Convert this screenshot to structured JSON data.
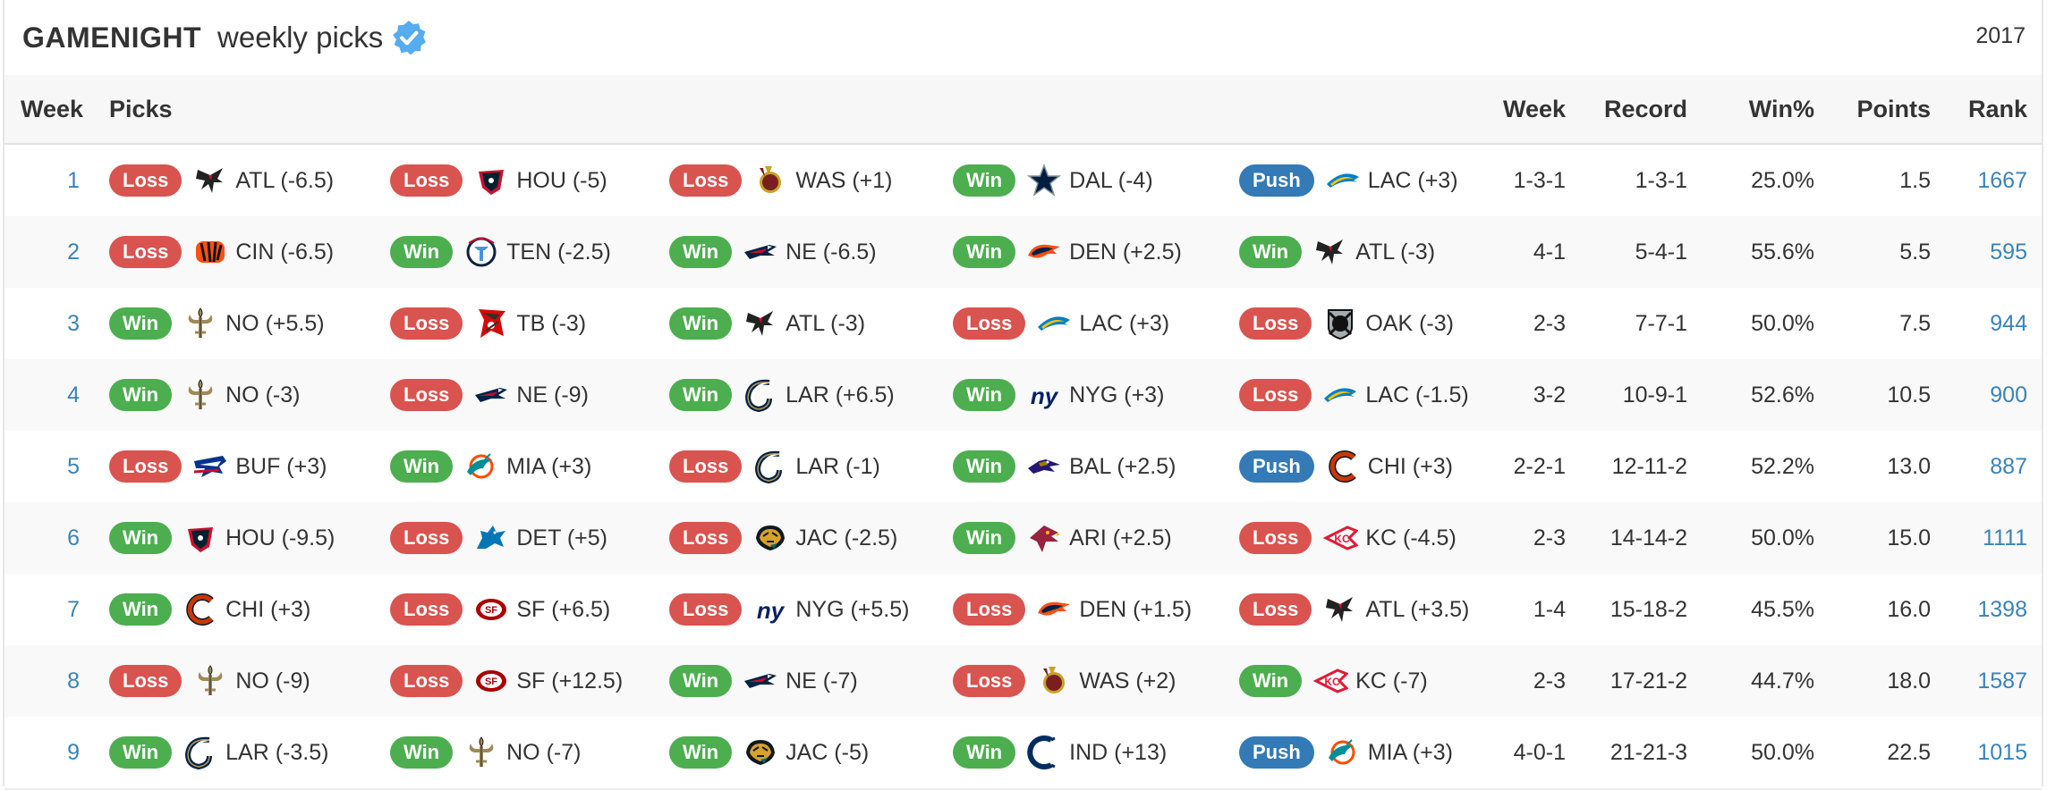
{
  "header": {
    "brand": "GAMENIGHT",
    "subtitle": "weekly picks",
    "year": "2017"
  },
  "columns": {
    "week": "Week",
    "picks": "Picks",
    "week_record": "Week",
    "record": "Record",
    "win_pct": "Win%",
    "points": "Points",
    "rank": "Rank"
  },
  "colors": {
    "win": "#4cae4f",
    "loss": "#d9534f",
    "push": "#337ab7",
    "link": "#3a83b8"
  },
  "rows": [
    {
      "week": "1",
      "picks": [
        {
          "result": "Loss",
          "team": "ATL",
          "icon": "falcons-logo-icon",
          "text": "ATL (-6.5)"
        },
        {
          "result": "Loss",
          "team": "HOU",
          "icon": "texans-logo-icon",
          "text": "HOU (-5)"
        },
        {
          "result": "Loss",
          "team": "WAS",
          "icon": "redskins-logo-icon",
          "text": "WAS (+1)"
        },
        {
          "result": "Win",
          "team": "DAL",
          "icon": "cowboys-logo-icon",
          "text": "DAL (-4)"
        },
        {
          "result": "Push",
          "team": "LAC",
          "icon": "chargers-logo-icon",
          "text": "LAC (+3)"
        }
      ],
      "week_record": "1-3-1",
      "record": "1-3-1",
      "win_pct": "25.0%",
      "points": "1.5",
      "rank": "1667"
    },
    {
      "week": "2",
      "picks": [
        {
          "result": "Loss",
          "team": "CIN",
          "icon": "bengals-logo-icon",
          "text": "CIN (-6.5)"
        },
        {
          "result": "Win",
          "team": "TEN",
          "icon": "titans-logo-icon",
          "text": "TEN (-2.5)"
        },
        {
          "result": "Win",
          "team": "NE",
          "icon": "patriots-logo-icon",
          "text": "NE (-6.5)"
        },
        {
          "result": "Win",
          "team": "DEN",
          "icon": "broncos-logo-icon",
          "text": "DEN (+2.5)"
        },
        {
          "result": "Win",
          "team": "ATL",
          "icon": "falcons-logo-icon",
          "text": "ATL (-3)"
        }
      ],
      "week_record": "4-1",
      "record": "5-4-1",
      "win_pct": "55.6%",
      "points": "5.5",
      "rank": "595"
    },
    {
      "week": "3",
      "picks": [
        {
          "result": "Win",
          "team": "NO",
          "icon": "saints-logo-icon",
          "text": "NO (+5.5)"
        },
        {
          "result": "Loss",
          "team": "TB",
          "icon": "buccaneers-logo-icon",
          "text": "TB (-3)"
        },
        {
          "result": "Win",
          "team": "ATL",
          "icon": "falcons-logo-icon",
          "text": "ATL (-3)"
        },
        {
          "result": "Loss",
          "team": "LAC",
          "icon": "chargers-logo-icon",
          "text": "LAC (+3)"
        },
        {
          "result": "Loss",
          "team": "OAK",
          "icon": "raiders-logo-icon",
          "text": "OAK (-3)"
        }
      ],
      "week_record": "2-3",
      "record": "7-7-1",
      "win_pct": "50.0%",
      "points": "7.5",
      "rank": "944"
    },
    {
      "week": "4",
      "picks": [
        {
          "result": "Win",
          "team": "NO",
          "icon": "saints-logo-icon",
          "text": "NO (-3)"
        },
        {
          "result": "Loss",
          "team": "NE",
          "icon": "patriots-logo-icon",
          "text": "NE (-9)"
        },
        {
          "result": "Win",
          "team": "LAR",
          "icon": "rams-logo-icon",
          "text": "LAR (+6.5)"
        },
        {
          "result": "Win",
          "team": "NYG",
          "icon": "giants-logo-icon",
          "text": "NYG (+3)"
        },
        {
          "result": "Loss",
          "team": "LAC",
          "icon": "chargers-logo-icon",
          "text": "LAC (-1.5)"
        }
      ],
      "week_record": "3-2",
      "record": "10-9-1",
      "win_pct": "52.6%",
      "points": "10.5",
      "rank": "900"
    },
    {
      "week": "5",
      "picks": [
        {
          "result": "Loss",
          "team": "BUF",
          "icon": "bills-logo-icon",
          "text": "BUF (+3)"
        },
        {
          "result": "Win",
          "team": "MIA",
          "icon": "dolphins-logo-icon",
          "text": "MIA (+3)"
        },
        {
          "result": "Loss",
          "team": "LAR",
          "icon": "rams-logo-icon",
          "text": "LAR (-1)"
        },
        {
          "result": "Win",
          "team": "BAL",
          "icon": "ravens-logo-icon",
          "text": "BAL (+2.5)"
        },
        {
          "result": "Push",
          "team": "CHI",
          "icon": "bears-logo-icon",
          "text": "CHI (+3)"
        }
      ],
      "week_record": "2-2-1",
      "record": "12-11-2",
      "win_pct": "52.2%",
      "points": "13.0",
      "rank": "887"
    },
    {
      "week": "6",
      "picks": [
        {
          "result": "Win",
          "team": "HOU",
          "icon": "texans-logo-icon",
          "text": "HOU (-9.5)"
        },
        {
          "result": "Loss",
          "team": "DET",
          "icon": "lions-logo-icon",
          "text": "DET (+5)"
        },
        {
          "result": "Loss",
          "team": "JAC",
          "icon": "jaguars-logo-icon",
          "text": "JAC (-2.5)"
        },
        {
          "result": "Win",
          "team": "ARI",
          "icon": "cardinals-logo-icon",
          "text": "ARI (+2.5)"
        },
        {
          "result": "Loss",
          "team": "KC",
          "icon": "chiefs-logo-icon",
          "text": "KC (-4.5)"
        }
      ],
      "week_record": "2-3",
      "record": "14-14-2",
      "win_pct": "50.0%",
      "points": "15.0",
      "rank": "1111"
    },
    {
      "week": "7",
      "picks": [
        {
          "result": "Win",
          "team": "CHI",
          "icon": "bears-logo-icon",
          "text": "CHI (+3)"
        },
        {
          "result": "Loss",
          "team": "SF",
          "icon": "49ers-logo-icon",
          "text": "SF (+6.5)"
        },
        {
          "result": "Loss",
          "team": "NYG",
          "icon": "giants-logo-icon",
          "text": "NYG (+5.5)"
        },
        {
          "result": "Loss",
          "team": "DEN",
          "icon": "broncos-logo-icon",
          "text": "DEN (+1.5)"
        },
        {
          "result": "Loss",
          "team": "ATL",
          "icon": "falcons-logo-icon",
          "text": "ATL (+3.5)"
        }
      ],
      "week_record": "1-4",
      "record": "15-18-2",
      "win_pct": "45.5%",
      "points": "16.0",
      "rank": "1398"
    },
    {
      "week": "8",
      "picks": [
        {
          "result": "Loss",
          "team": "NO",
          "icon": "saints-logo-icon",
          "text": "NO (-9)"
        },
        {
          "result": "Loss",
          "team": "SF",
          "icon": "49ers-logo-icon",
          "text": "SF (+12.5)"
        },
        {
          "result": "Win",
          "team": "NE",
          "icon": "patriots-logo-icon",
          "text": "NE (-7)"
        },
        {
          "result": "Loss",
          "team": "WAS",
          "icon": "redskins-logo-icon",
          "text": "WAS (+2)"
        },
        {
          "result": "Win",
          "team": "KC",
          "icon": "chiefs-logo-icon",
          "text": "KC (-7)"
        }
      ],
      "week_record": "2-3",
      "record": "17-21-2",
      "win_pct": "44.7%",
      "points": "18.0",
      "rank": "1587"
    },
    {
      "week": "9",
      "picks": [
        {
          "result": "Win",
          "team": "LAR",
          "icon": "rams-logo-icon",
          "text": "LAR (-3.5)"
        },
        {
          "result": "Win",
          "team": "NO",
          "icon": "saints-logo-icon",
          "text": "NO (-7)"
        },
        {
          "result": "Win",
          "team": "JAC",
          "icon": "jaguars-logo-icon",
          "text": "JAC (-5)"
        },
        {
          "result": "Win",
          "team": "IND",
          "icon": "colts-logo-icon",
          "text": "IND (+13)"
        },
        {
          "result": "Push",
          "team": "MIA",
          "icon": "dolphins-logo-icon",
          "text": "MIA (+3)"
        }
      ],
      "week_record": "4-0-1",
      "record": "21-21-3",
      "win_pct": "50.0%",
      "points": "22.5",
      "rank": "1015"
    }
  ]
}
